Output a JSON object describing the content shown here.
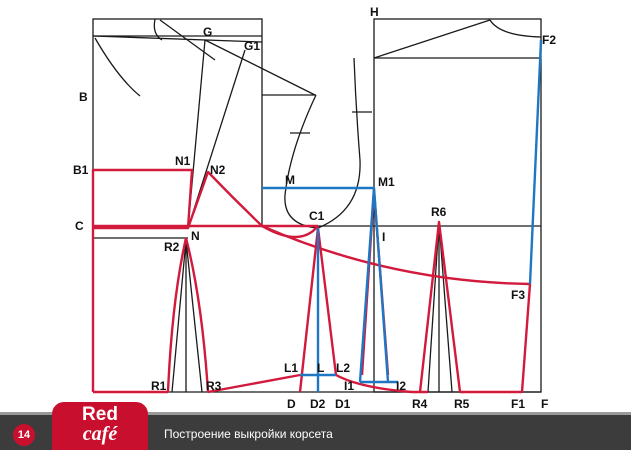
{
  "diagram": {
    "points": {
      "B": "B",
      "B1": "B1",
      "C": "C",
      "G": "G",
      "G1": "G1",
      "H": "H",
      "F2": "F2",
      "N1": "N1",
      "N2": "N2",
      "N": "N",
      "R2": "R2",
      "M": "M",
      "M1": "M1",
      "C1": "C1",
      "I": "I",
      "R6": "R6",
      "F3": "F3",
      "L1": "L1",
      "L": "L",
      "L2": "L2",
      "I1": "I1",
      "I2": "I2",
      "R1": "R1",
      "R3": "R3",
      "D": "D",
      "D2": "D2",
      "D1": "D1",
      "R4": "R4",
      "R5": "R5",
      "F1": "F1",
      "F": "F"
    },
    "colors": {
      "outline": "#1a1a1a",
      "front": "#d11a3c",
      "back": "#1f77c4"
    }
  },
  "footer": {
    "page_number": "14",
    "logo_top": "Red",
    "logo_bottom": "café",
    "caption": "Построение выкройки корсета",
    "colors": {
      "bar": "#3c3c3c",
      "accent": "#c8102e"
    }
  }
}
